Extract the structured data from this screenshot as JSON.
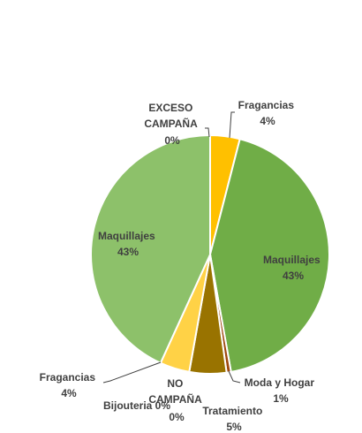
{
  "chart_data": {
    "type": "pie",
    "title": "",
    "slices": [
      {
        "name": "Fragancias",
        "value": 4,
        "value_label": "4%",
        "color": "#FFC000",
        "group": "CAMPAÑA"
      },
      {
        "name": "Maquillajes",
        "value": 43,
        "value_label": "43%",
        "color": "#70AD47",
        "group": "CAMPAÑA"
      },
      {
        "name": "Moda y Hogar",
        "value": 0.6,
        "value_label": "1%",
        "color": "#9E480E",
        "group": "CAMPAÑA"
      },
      {
        "name": "Tratamiento",
        "value": 5,
        "value_label": "5%",
        "color": "#997300",
        "group": "CAMPAÑA"
      },
      {
        "name": "Bijouteria",
        "value": 0,
        "value_label": "0%",
        "color": "#C9C9C9",
        "group": "NO CAMPAÑA"
      },
      {
        "name": "NO CAMPAÑA",
        "value": 0,
        "value_label": "0%",
        "color": "#A5A5A5",
        "group": "NO CAMPAÑA"
      },
      {
        "name": "Fragancias",
        "value": 4,
        "value_label": "4%",
        "color": "#FFD246",
        "group": "NO CAMPAÑA"
      },
      {
        "name": "Maquillajes",
        "value": 43,
        "value_label": "43%",
        "color": "#8DC16A",
        "group": "NO CAMPAÑA"
      },
      {
        "name": "EXCESO CAMPAÑA",
        "value": 0,
        "value_label": "0%",
        "color": "#C9C9C9",
        "group": "EXCESO"
      }
    ],
    "labels": {
      "fragancias_a": {
        "line1": "Fragancias",
        "line2": "4%"
      },
      "maquillajes_a": {
        "line1": "Maquillajes",
        "line2": "43%"
      },
      "moda_hogar": {
        "line1": "Moda y Hogar",
        "line2": "1%"
      },
      "tratamiento": {
        "line1": "Tratamiento",
        "line2": "5%"
      },
      "no_campana": {
        "line1": "NO",
        "line2": "CAMPAÑA",
        "line3": "0%"
      },
      "bijouteria": {
        "line1": "Bijouteria 0%"
      },
      "fragancias_b": {
        "line1": "Fragancias",
        "line2": "4%"
      },
      "maquillajes_b": {
        "line1": "Maquillajes",
        "line2": "43%"
      },
      "exceso": {
        "line1": "EXCESO",
        "line2": "CAMPAÑA",
        "line3": "0%"
      }
    },
    "legend": "none"
  }
}
